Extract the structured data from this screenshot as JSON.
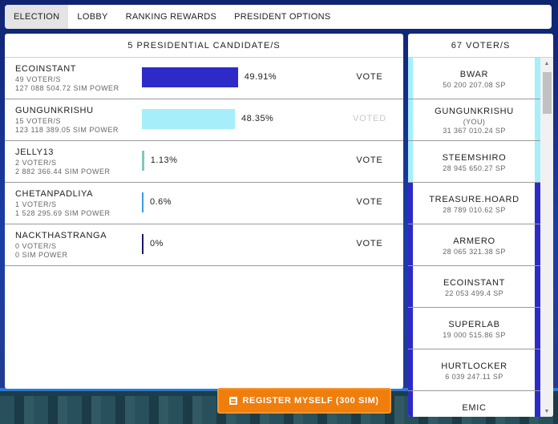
{
  "tabs": [
    {
      "label": "ELECTION",
      "active": true
    },
    {
      "label": "LOBBY",
      "active": false
    },
    {
      "label": "RANKING REWARDS",
      "active": false
    },
    {
      "label": "PRESIDENT OPTIONS",
      "active": false
    }
  ],
  "candidates_panel": {
    "title": "5 PRESIDENTIAL CANDIDATE/S",
    "candidates": [
      {
        "name": "ECOINSTANT",
        "voters": "49 VOTER/S",
        "power": "127 088 504.72 SIM POWER",
        "percent": "49.91%",
        "share": 49.91,
        "bar_color": "#2d2ac9",
        "action": "VOTE",
        "voted": false
      },
      {
        "name": "GUNGUNKRISHU",
        "voters": "15 VOTER/S",
        "power": "123 118 389.05 SIM POWER",
        "percent": "48.35%",
        "share": 48.35,
        "bar_color": "#a6effa",
        "action": "VOTED",
        "voted": true
      },
      {
        "name": "JELLY13",
        "voters": "2 VOTER/S",
        "power": "2 882 366.44 SIM POWER",
        "percent": "1.13%",
        "share": 1.13,
        "bar_color": "#7fc8c0",
        "action": "VOTE",
        "voted": false
      },
      {
        "name": "CHETANPADLIYA",
        "voters": "1 VOTER/S",
        "power": "1 528 295.69 SIM POWER",
        "percent": "0.6%",
        "share": 0.6,
        "bar_color": "#3b9be8",
        "action": "VOTE",
        "voted": false
      },
      {
        "name": "NACKTHASTRANGA",
        "voters": "0 VOTER/S",
        "power": "0 SIM POWER",
        "percent": "0%",
        "share": 0,
        "bar_color": "#1a1a6e",
        "action": "VOTE",
        "voted": false
      }
    ]
  },
  "register_button": {
    "label": "REGISTER MYSELF (300 SIM)",
    "color": "#ef7e0c"
  },
  "voters_panel": {
    "title": "67 VOTER/S",
    "voters": [
      {
        "name": "BWAR",
        "note": "",
        "power": "50 200 207.08 SP",
        "color": "#a6effa"
      },
      {
        "name": "GUNGUNKRISHU",
        "note": "(YOU)",
        "power": "31 367 010.24 SP",
        "color": "#a6effa"
      },
      {
        "name": "STEEMSHIRO",
        "note": "",
        "power": "28 945 650.27 SP",
        "color": "#a6effa"
      },
      {
        "name": "TREASURE.HOARD",
        "note": "",
        "power": "28 789 010.62 SP",
        "color": "#2d2ac9"
      },
      {
        "name": "ARMERO",
        "note": "",
        "power": "28 065 321.38 SP",
        "color": "#2d2ac9"
      },
      {
        "name": "ECOINSTANT",
        "note": "",
        "power": "22 053 499.4 SP",
        "color": "#2d2ac9"
      },
      {
        "name": "SUPERLAB",
        "note": "",
        "power": "19 000 515.86 SP",
        "color": "#2d2ac9"
      },
      {
        "name": "HURTLOCKER",
        "note": "",
        "power": "6 039 247.11 SP",
        "color": "#2d2ac9"
      },
      {
        "name": "EMIC",
        "note": "",
        "power": "",
        "color": "#2d2ac9"
      }
    ]
  },
  "icons": {
    "register": "form-icon",
    "scroll_up": "caret-up-icon",
    "scroll_down": "caret-down-icon"
  }
}
